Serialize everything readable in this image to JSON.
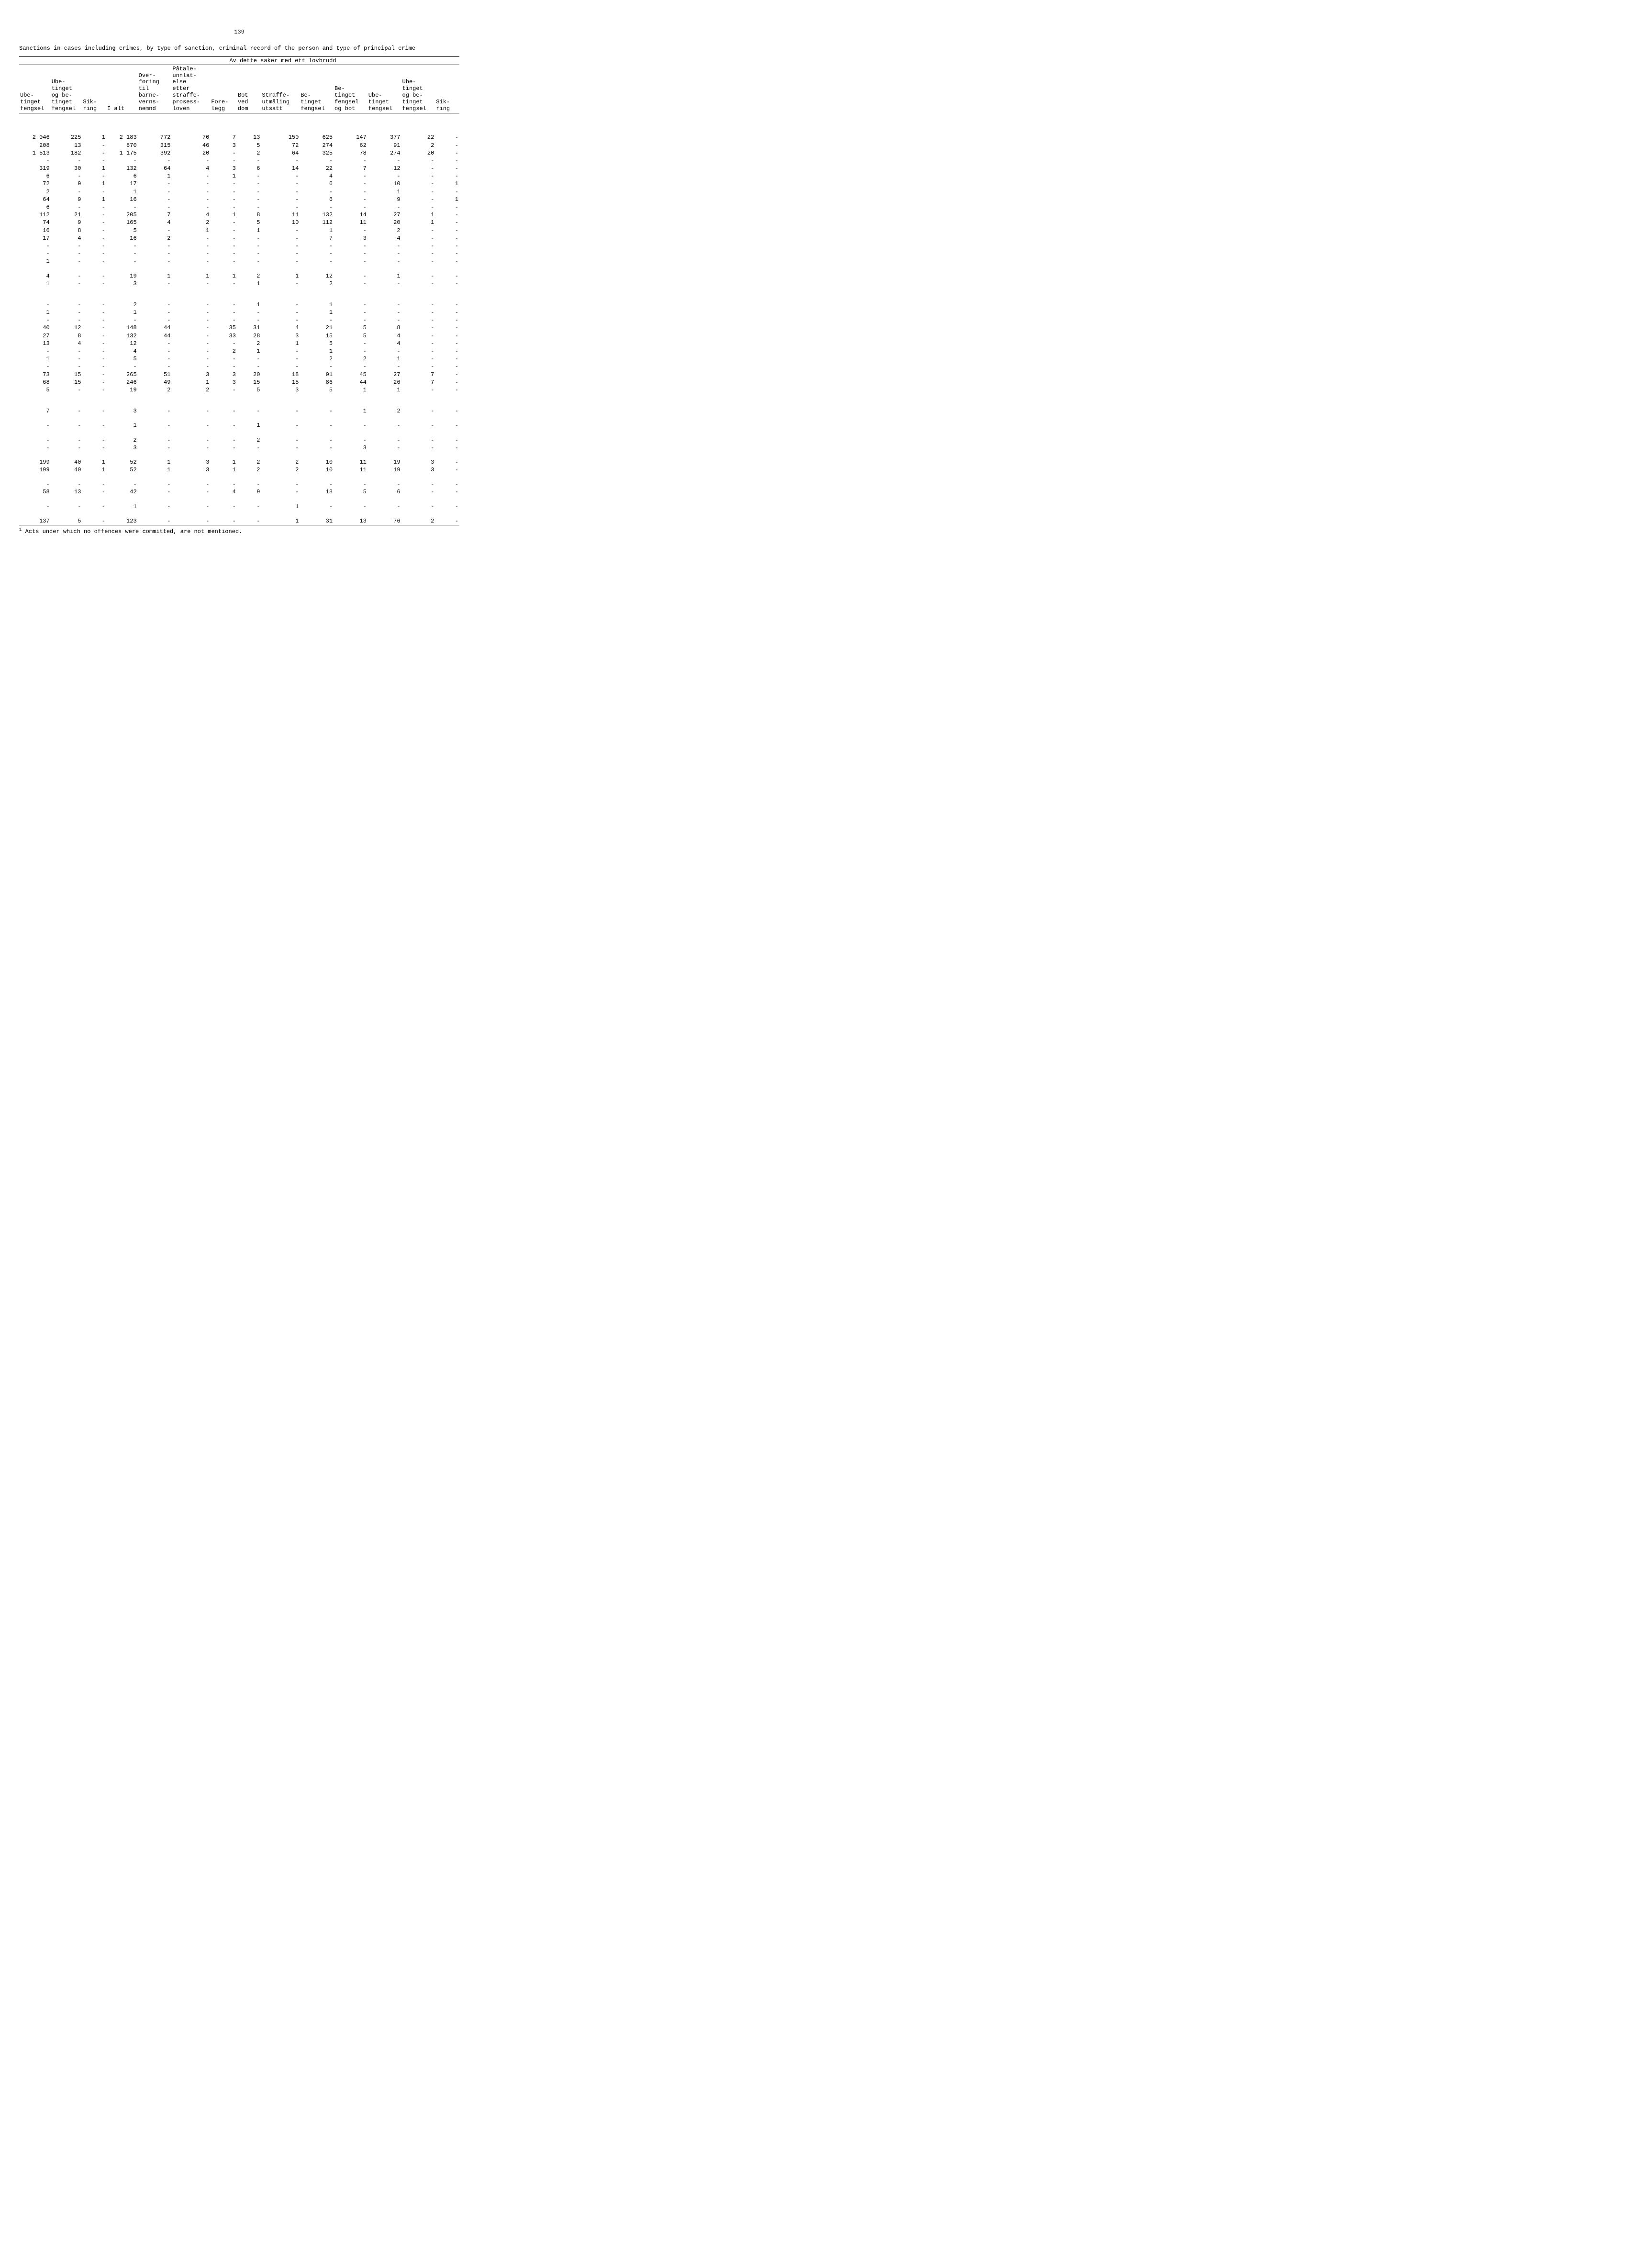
{
  "page_number": "139",
  "title": "Sanctions in cases including crimes, by type of sanction, criminal record of the person and type of principal crime",
  "group_header": "Av dette saker med ett lovbrudd",
  "columns": [
    "Ube-\ntinget\nfengsel",
    "Ube-\ntinget\nog be-\ntinget\nfengsel",
    "Sik-\nring",
    "I alt",
    "Over-\nføring\ntil\nbarne-\nverns-\nnemnd",
    "Påtale-\nunnlat-\nelse\netter\nstraffe-\nprosess-\nloven",
    "Fore-\nlegg",
    "Bot\nved\ndom",
    "Straffe-\nutmåling\nutsatt",
    "Be-\ntinget\nfengsel",
    "Be-\ntinget\nfengsel\nog bot",
    "Ube-\ntinget\nfengsel",
    "Ube-\ntinget\nog be-\ntinget\nfengsel",
    "Sik-\nring"
  ],
  "groups": [
    {
      "gap_before": 3,
      "rows": [
        [
          "2 046",
          "225",
          "1",
          "2 183",
          "772",
          "70",
          "7",
          "13",
          "150",
          "625",
          "147",
          "377",
          "22",
          "-"
        ],
        [
          "208",
          "13",
          "-",
          "870",
          "315",
          "46",
          "3",
          "5",
          "72",
          "274",
          "62",
          "91",
          "2",
          "-"
        ],
        [
          "1 513",
          "182",
          "-",
          "1 175",
          "392",
          "20",
          "-",
          "2",
          "64",
          "325",
          "78",
          "274",
          "20",
          "-"
        ],
        [
          "-",
          "-",
          "-",
          "-",
          "-",
          "-",
          "-",
          "-",
          "-",
          "-",
          "-",
          "-",
          "-",
          "-"
        ],
        [
          "319",
          "30",
          "1",
          "132",
          "64",
          "4",
          "3",
          "6",
          "14",
          "22",
          "7",
          "12",
          "-",
          "-"
        ],
        [
          "6",
          "-",
          "-",
          "6",
          "1",
          "-",
          "1",
          "-",
          "-",
          "4",
          "-",
          "-",
          "-",
          "-"
        ],
        [
          "72",
          "9",
          "1",
          "17",
          "-",
          "-",
          "-",
          "-",
          "-",
          "6",
          "-",
          "10",
          "-",
          "1"
        ],
        [
          "2",
          "-",
          "-",
          "1",
          "-",
          "-",
          "-",
          "-",
          "-",
          "-",
          "-",
          "1",
          "-",
          "-"
        ],
        [
          "64",
          "9",
          "1",
          "16",
          "-",
          "-",
          "-",
          "-",
          "-",
          "6",
          "-",
          "9",
          "-",
          "1"
        ],
        [
          "6",
          "-",
          "-",
          "-",
          "-",
          "-",
          "-",
          "-",
          "-",
          "-",
          "-",
          "-",
          "-",
          "-"
        ],
        [
          "112",
          "21",
          "-",
          "205",
          "7",
          "4",
          "1",
          "8",
          "11",
          "132",
          "14",
          "27",
          "1",
          "-"
        ],
        [
          "74",
          "9",
          "-",
          "165",
          "4",
          "2",
          "-",
          "5",
          "10",
          "112",
          "11",
          "20",
          "1",
          "-"
        ],
        [
          "16",
          "8",
          "-",
          "5",
          "-",
          "1",
          "-",
          "1",
          "-",
          "1",
          "-",
          "2",
          "-",
          "-"
        ],
        [
          "17",
          "4",
          "-",
          "16",
          "2",
          "-",
          "-",
          "-",
          "-",
          "7",
          "3",
          "4",
          "-",
          "-"
        ],
        [
          "-",
          "-",
          "-",
          "-",
          "-",
          "-",
          "-",
          "-",
          "-",
          "-",
          "-",
          "-",
          "-",
          "-"
        ],
        [
          "-",
          "-",
          "-",
          "-",
          "-",
          "-",
          "-",
          "-",
          "-",
          "-",
          "-",
          "-",
          "-",
          "-"
        ],
        [
          "1",
          "-",
          "-",
          "-",
          "-",
          "-",
          "-",
          "-",
          "-",
          "-",
          "-",
          "-",
          "-",
          "-"
        ]
      ]
    },
    {
      "gap_before": 1,
      "rows": [
        [
          "4",
          "-",
          "-",
          "19",
          "1",
          "1",
          "1",
          "2",
          "1",
          "12",
          "-",
          "1",
          "-",
          "-"
        ],
        [
          "1",
          "-",
          "-",
          "3",
          "-",
          "-",
          "-",
          "1",
          "-",
          "2",
          "-",
          "-",
          "-",
          "-"
        ]
      ]
    },
    {
      "gap_before": 2,
      "rows": [
        [
          "-",
          "-",
          "-",
          "2",
          "-",
          "-",
          "-",
          "1",
          "-",
          "1",
          "-",
          "-",
          "-",
          "-"
        ],
        [
          "1",
          "-",
          "-",
          "1",
          "-",
          "-",
          "-",
          "-",
          "-",
          "1",
          "-",
          "-",
          "-",
          "-"
        ],
        [
          "-",
          "-",
          "-",
          "-",
          "-",
          "-",
          "-",
          "-",
          "-",
          "-",
          "-",
          "-",
          "-",
          "-"
        ],
        [
          "40",
          "12",
          "-",
          "148",
          "44",
          "-",
          "35",
          "31",
          "4",
          "21",
          "5",
          "8",
          "-",
          "-"
        ],
        [
          "27",
          "8",
          "-",
          "132",
          "44",
          "-",
          "33",
          "28",
          "3",
          "15",
          "5",
          "4",
          "-",
          "-"
        ],
        [
          "13",
          "4",
          "-",
          "12",
          "-",
          "-",
          "-",
          "2",
          "1",
          "5",
          "-",
          "4",
          "-",
          "-"
        ],
        [
          "-",
          "-",
          "-",
          "4",
          "-",
          "-",
          "2",
          "1",
          "-",
          "1",
          "-",
          "-",
          "-",
          "-"
        ],
        [
          "1",
          "-",
          "-",
          "5",
          "-",
          "-",
          "-",
          "-",
          "-",
          "2",
          "2",
          "1",
          "-",
          "-"
        ],
        [
          "-",
          "-",
          "-",
          "-",
          "-",
          "-",
          "-",
          "-",
          "-",
          "-",
          "-",
          "-",
          "-",
          "-"
        ],
        [
          "73",
          "15",
          "-",
          "265",
          "51",
          "3",
          "3",
          "20",
          "18",
          "91",
          "45",
          "27",
          "7",
          "-"
        ],
        [
          "68",
          "15",
          "-",
          "246",
          "49",
          "1",
          "3",
          "15",
          "15",
          "86",
          "44",
          "26",
          "7",
          "-"
        ],
        [
          "5",
          "-",
          "-",
          "19",
          "2",
          "2",
          "-",
          "5",
          "3",
          "5",
          "1",
          "1",
          "-",
          "-"
        ]
      ]
    },
    {
      "gap_before": 2,
      "rows": [
        [
          "7",
          "-",
          "-",
          "3",
          "-",
          "-",
          "-",
          "-",
          "-",
          "-",
          "1",
          "2",
          "-",
          "-"
        ]
      ]
    },
    {
      "gap_before": 1,
      "rows": [
        [
          "-",
          "-",
          "-",
          "1",
          "-",
          "-",
          "-",
          "1",
          "-",
          "-",
          "-",
          "-",
          "-",
          "-"
        ]
      ]
    },
    {
      "gap_before": 1,
      "rows": [
        [
          "-",
          "-",
          "-",
          "2",
          "-",
          "-",
          "-",
          "2",
          "-",
          "-",
          "-",
          "-",
          "-",
          "-"
        ],
        [
          "-",
          "-",
          "-",
          "3",
          "-",
          "-",
          "-",
          "-",
          "-",
          "-",
          "3",
          "-",
          "-",
          "-"
        ]
      ]
    },
    {
      "gap_before": 1,
      "rows": [
        [
          "199",
          "40",
          "1",
          "52",
          "1",
          "3",
          "1",
          "2",
          "2",
          "10",
          "11",
          "19",
          "3",
          "-"
        ],
        [
          "199",
          "40",
          "1",
          "52",
          "1",
          "3",
          "1",
          "2",
          "2",
          "10",
          "11",
          "19",
          "3",
          "-"
        ]
      ]
    },
    {
      "gap_before": 1,
      "rows": [
        [
          "-",
          "-",
          "-",
          "-",
          "-",
          "-",
          "-",
          "-",
          "-",
          "-",
          "-",
          "-",
          "-",
          "-"
        ],
        [
          "58",
          "13",
          "-",
          "42",
          "-",
          "-",
          "4",
          "9",
          "-",
          "18",
          "5",
          "6",
          "-",
          "-"
        ]
      ]
    },
    {
      "gap_before": 1,
      "rows": [
        [
          "-",
          "-",
          "-",
          "1",
          "-",
          "-",
          "-",
          "-",
          "1",
          "-",
          "-",
          "-",
          "-",
          "-"
        ]
      ]
    },
    {
      "gap_before": 1,
      "underline": true,
      "rows": [
        [
          "137",
          "5",
          "-",
          "123",
          "-",
          "-",
          "-",
          "-",
          "1",
          "31",
          "13",
          "76",
          "2",
          "-"
        ]
      ]
    }
  ],
  "footnote": "Acts under which no offences were committed, are not mentioned.",
  "footnote_marker": "1"
}
